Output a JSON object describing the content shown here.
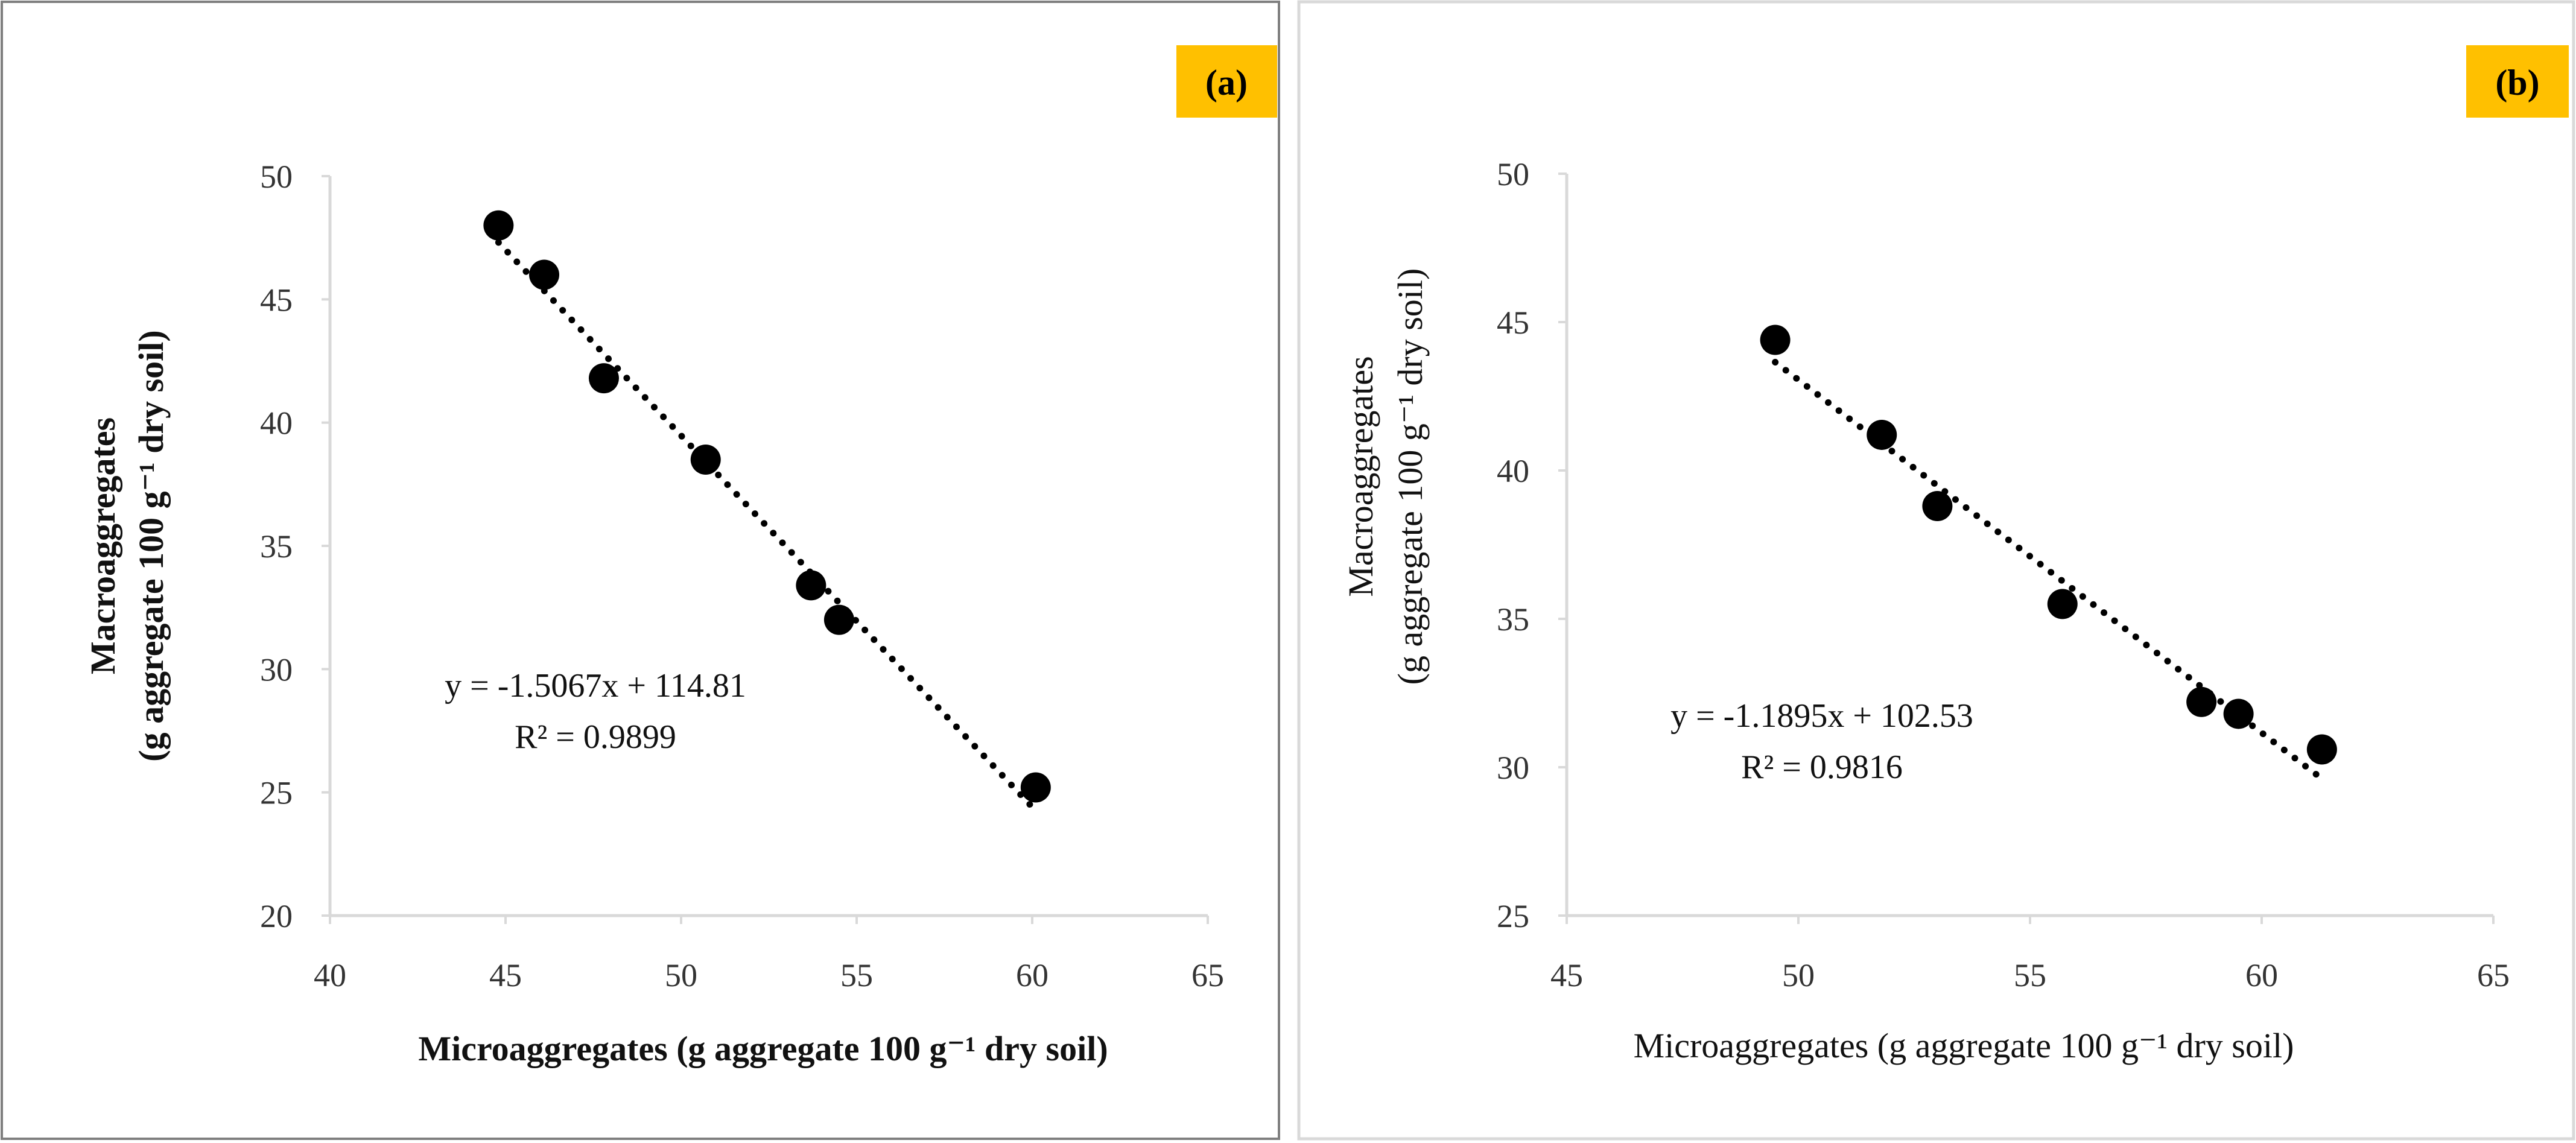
{
  "colors": {
    "badge": "#FFC000",
    "point": "#000000",
    "axis": "#D9D9D9",
    "frame_a": "#7F7F7F",
    "frame_b": "#D9D9D9"
  },
  "chart_data": [
    {
      "type": "scatter",
      "panel_label": "(a)",
      "xlabel": "Microaggregates (g aggregate 100 g⁻¹ dry soil)",
      "ylabel_line1": "Macroaggregates",
      "ylabel_line2": "(g aggregate 100 g⁻¹ dry soil)",
      "label_weight": "bold",
      "xlim": [
        40,
        65
      ],
      "ylim": [
        20,
        50
      ],
      "xticks": [
        40,
        45,
        50,
        55,
        60,
        65
      ],
      "yticks": [
        20,
        25,
        30,
        35,
        40,
        45,
        50
      ],
      "x": [
        44.8,
        46.1,
        47.8,
        50.7,
        53.7,
        54.5,
        60.1
      ],
      "y": [
        48.0,
        46.0,
        41.8,
        38.5,
        33.4,
        32.0,
        25.2
      ],
      "trendline": {
        "slope": -1.5067,
        "intercept": 114.81,
        "x_range": [
          44.8,
          60.1
        ],
        "style": "dotted"
      },
      "equation": "y = -1.5067x + 114.81",
      "r_squared": "R² = 0.9899"
    },
    {
      "type": "scatter",
      "panel_label": "(b)",
      "xlabel": "Microaggregates (g aggregate 100 g⁻¹ dry soil)",
      "ylabel_line1": "Macroaggregates",
      "ylabel_line2": "(g aggregate 100 g⁻¹ dry soil)",
      "label_weight": "normal",
      "xlim": [
        45,
        65
      ],
      "ylim": [
        25,
        50
      ],
      "xticks": [
        45,
        50,
        55,
        60,
        65
      ],
      "yticks": [
        25,
        30,
        35,
        40,
        45,
        50
      ],
      "x": [
        49.5,
        51.8,
        53.0,
        55.7,
        58.7,
        59.5,
        61.3
      ],
      "y": [
        44.4,
        41.2,
        38.8,
        35.5,
        32.2,
        31.8,
        30.6
      ],
      "trendline": {
        "slope": -1.1895,
        "intercept": 102.53,
        "x_range": [
          49.5,
          61.3
        ],
        "style": "dotted"
      },
      "equation": "y = -1.1895x + 102.53",
      "r_squared": "R² = 0.9816"
    }
  ]
}
